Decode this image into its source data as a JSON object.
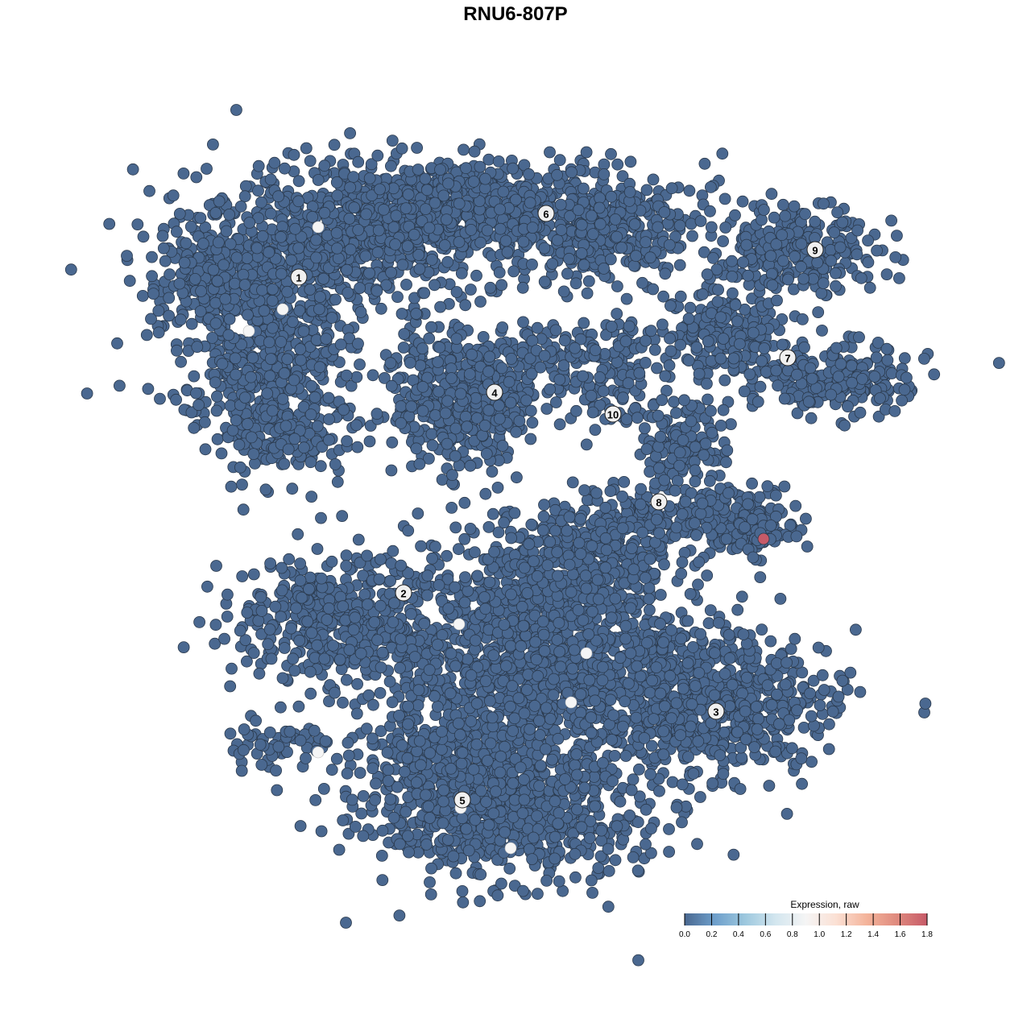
{
  "chart_data": {
    "type": "scatter",
    "title": "RNU6-807P",
    "xlabel": "",
    "ylabel": "",
    "grid": false,
    "point_color_default": "#4a6890",
    "cluster_labels": [
      "1",
      "2",
      "3",
      "4",
      "5",
      "6",
      "7",
      "8",
      "9",
      "10"
    ],
    "expression_summary": {
      "most_cells_value": 0.0,
      "cells_near_value_1": 9,
      "max_cell_value": 1.8,
      "max_cell_cluster": "8"
    },
    "legend": {
      "title": "Expression, raw",
      "placement": "bottom-right",
      "ticks": [
        "0.0",
        "0.2",
        "0.4",
        "0.6",
        "0.8",
        "1.0",
        "1.2",
        "1.4",
        "1.6",
        "1.8"
      ],
      "range": [
        0.0,
        1.8
      ],
      "colors": [
        "#4a6890",
        "#6e9fcb",
        "#9dc8de",
        "#d3e6ef",
        "#f5f5f5",
        "#fbe0d4",
        "#f4b49b",
        "#df8a7e",
        "#c75a68"
      ]
    }
  }
}
